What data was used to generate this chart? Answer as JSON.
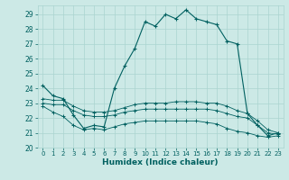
{
  "title": "",
  "xlabel": "Humidex (Indice chaleur)",
  "background_color": "#cce9e6",
  "grid_color": "#aad4d0",
  "line_color": "#006060",
  "xlim": [
    -0.5,
    23.5
  ],
  "ylim": [
    20,
    29.6
  ],
  "yticks": [
    20,
    21,
    22,
    23,
    24,
    25,
    26,
    27,
    28,
    29
  ],
  "xticks": [
    0,
    1,
    2,
    3,
    4,
    5,
    6,
    7,
    8,
    9,
    10,
    11,
    12,
    13,
    14,
    15,
    16,
    17,
    18,
    19,
    20,
    21,
    22,
    23
  ],
  "line1_y": [
    24.2,
    23.5,
    23.3,
    22.2,
    21.3,
    21.5,
    21.4,
    24.0,
    25.5,
    26.7,
    28.5,
    28.2,
    29.0,
    28.7,
    29.3,
    28.7,
    28.5,
    28.3,
    27.2,
    27.0,
    22.3,
    21.5,
    20.8,
    21.0
  ],
  "line2_y": [
    23.3,
    23.2,
    23.2,
    22.8,
    22.5,
    22.4,
    22.4,
    22.5,
    22.7,
    22.9,
    23.0,
    23.0,
    23.0,
    23.1,
    23.1,
    23.1,
    23.0,
    23.0,
    22.8,
    22.5,
    22.3,
    21.8,
    21.2,
    21.0
  ],
  "line3_y": [
    23.0,
    22.9,
    22.9,
    22.5,
    22.2,
    22.1,
    22.1,
    22.2,
    22.4,
    22.5,
    22.6,
    22.6,
    22.6,
    22.6,
    22.6,
    22.6,
    22.6,
    22.5,
    22.3,
    22.1,
    22.0,
    21.5,
    21.0,
    20.9
  ],
  "line4_y": [
    22.8,
    22.4,
    22.1,
    21.5,
    21.2,
    21.3,
    21.2,
    21.4,
    21.6,
    21.7,
    21.8,
    21.8,
    21.8,
    21.8,
    21.8,
    21.8,
    21.7,
    21.6,
    21.3,
    21.1,
    21.0,
    20.8,
    20.7,
    20.8
  ]
}
